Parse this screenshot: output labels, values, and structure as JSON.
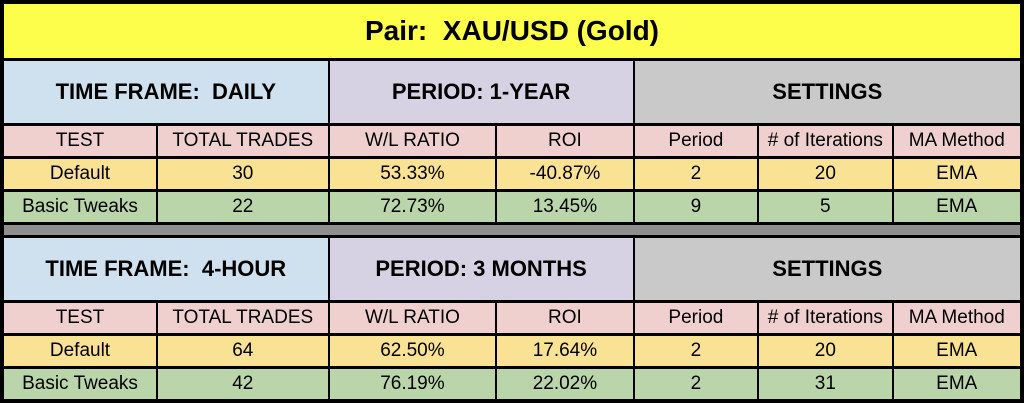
{
  "banner": {
    "title": "Pair:  XAU/USD (Gold)"
  },
  "colors": {
    "banner_yellow": "#FDFD4B",
    "timeframe_blue": "#CFE0EE",
    "period_purple": "#D7D2E3",
    "settings_gray": "#C9C9C9",
    "column_header_pink": "#EFD0CF",
    "default_row_yellow": "#FAE294",
    "tweaks_row_green": "#B9D5A9",
    "separator_gray": "#8F8F8F",
    "grid_black": "#000000"
  },
  "chart_data": [
    {
      "type": "table",
      "title": "Pair:  XAU/USD (Gold)",
      "section_headers": {
        "time_frame": "TIME FRAME:  DAILY",
        "period": "PERIOD: 1-YEAR",
        "settings": "SETTINGS"
      },
      "columns": [
        "TEST",
        "TOTAL TRADES",
        "W/L RATIO",
        "ROI",
        "Period",
        "# of Iterations",
        "MA Method"
      ],
      "rows": [
        [
          "Default",
          "30",
          "53.33%",
          "-40.87%",
          "2",
          "20",
          "EMA"
        ],
        [
          "Basic Tweaks",
          "22",
          "72.73%",
          "13.45%",
          "9",
          "5",
          "EMA"
        ]
      ]
    },
    {
      "type": "table",
      "title": "Pair:  XAU/USD (Gold)",
      "section_headers": {
        "time_frame": "TIME FRAME:  4-HOUR",
        "period": "PERIOD: 3 MONTHS",
        "settings": "SETTINGS"
      },
      "columns": [
        "TEST",
        "TOTAL TRADES",
        "W/L RATIO",
        "ROI",
        "Period",
        "# of Iterations",
        "MA Method"
      ],
      "rows": [
        [
          "Default",
          "64",
          "62.50%",
          "17.64%",
          "2",
          "20",
          "EMA"
        ],
        [
          "Basic Tweaks",
          "42",
          "76.19%",
          "22.02%",
          "2",
          "31",
          "EMA"
        ]
      ]
    }
  ]
}
